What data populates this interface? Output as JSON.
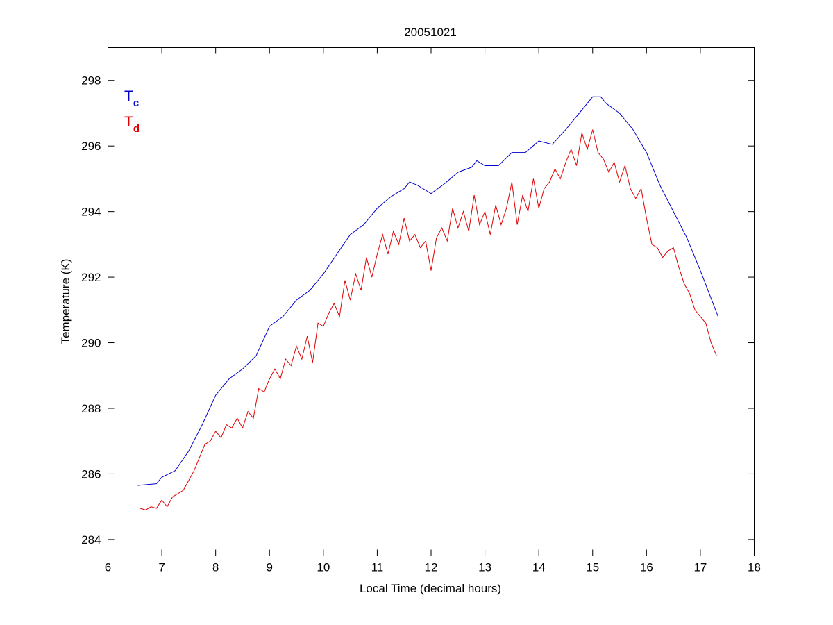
{
  "chart_data": {
    "type": "line",
    "title": "20051021",
    "xlabel": "Local Time (decimal hours)",
    "ylabel": "Temperature (K)",
    "xlim": [
      6,
      18
    ],
    "ylim": [
      283.5,
      299
    ],
    "xticks": [
      6,
      7,
      8,
      9,
      10,
      11,
      12,
      13,
      14,
      15,
      16,
      17,
      18
    ],
    "yticks": [
      284,
      286,
      288,
      290,
      292,
      294,
      296,
      298
    ],
    "grid": false,
    "legend_placement": "top-left",
    "series": [
      {
        "name": "Tc",
        "legend_main": "T",
        "legend_sub": "c",
        "color": "#0000cc",
        "x": [
          6.55,
          6.9,
          7.0,
          7.25,
          7.5,
          7.75,
          8.0,
          8.25,
          8.5,
          8.75,
          9.0,
          9.25,
          9.5,
          9.75,
          10.0,
          10.25,
          10.5,
          10.75,
          11.0,
          11.25,
          11.5,
          11.6,
          11.75,
          12.0,
          12.25,
          12.5,
          12.75,
          12.85,
          13.0,
          13.25,
          13.5,
          13.75,
          14.0,
          14.25,
          14.5,
          14.75,
          15.0,
          15.15,
          15.25,
          15.5,
          15.75,
          16.0,
          16.25,
          16.5,
          16.75,
          17.0,
          17.33
        ],
        "y": [
          285.65,
          285.7,
          285.9,
          286.1,
          286.7,
          287.5,
          288.4,
          288.9,
          289.2,
          289.6,
          290.5,
          290.8,
          291.3,
          291.6,
          292.1,
          292.7,
          293.3,
          293.6,
          294.1,
          294.45,
          294.7,
          294.9,
          294.8,
          294.55,
          294.85,
          295.2,
          295.35,
          295.55,
          295.4,
          295.4,
          295.8,
          295.8,
          296.15,
          296.05,
          296.5,
          297.0,
          297.5,
          297.5,
          297.3,
          297.0,
          296.5,
          295.8,
          294.8,
          294.0,
          293.2,
          292.2,
          290.8
        ]
      },
      {
        "name": "Td",
        "legend_main": "T",
        "legend_sub": "d",
        "color": "#e00000",
        "x": [
          6.6,
          6.7,
          6.8,
          6.9,
          7.0,
          7.1,
          7.2,
          7.3,
          7.4,
          7.5,
          7.6,
          7.7,
          7.8,
          7.9,
          8.0,
          8.1,
          8.2,
          8.3,
          8.4,
          8.5,
          8.6,
          8.7,
          8.8,
          8.9,
          9.0,
          9.1,
          9.2,
          9.3,
          9.4,
          9.5,
          9.6,
          9.7,
          9.8,
          9.9,
          10.0,
          10.1,
          10.2,
          10.3,
          10.4,
          10.5,
          10.6,
          10.7,
          10.8,
          10.9,
          11.0,
          11.1,
          11.2,
          11.3,
          11.4,
          11.5,
          11.6,
          11.7,
          11.8,
          11.9,
          12.0,
          12.1,
          12.2,
          12.3,
          12.4,
          12.5,
          12.6,
          12.7,
          12.8,
          12.9,
          13.0,
          13.1,
          13.2,
          13.3,
          13.4,
          13.5,
          13.6,
          13.7,
          13.8,
          13.9,
          14.0,
          14.1,
          14.2,
          14.3,
          14.4,
          14.5,
          14.6,
          14.7,
          14.8,
          14.9,
          15.0,
          15.1,
          15.2,
          15.3,
          15.4,
          15.5,
          15.6,
          15.7,
          15.8,
          15.9,
          16.0,
          16.1,
          16.2,
          16.3,
          16.4,
          16.5,
          16.6,
          16.7,
          16.8,
          16.9,
          17.0,
          17.1,
          17.2,
          17.3,
          17.33
        ],
        "y": [
          284.95,
          284.9,
          285.0,
          284.95,
          285.2,
          285.0,
          285.3,
          285.4,
          285.5,
          285.8,
          286.1,
          286.5,
          286.9,
          287.0,
          287.3,
          287.1,
          287.5,
          287.4,
          287.7,
          287.4,
          287.9,
          287.7,
          288.6,
          288.5,
          288.9,
          289.2,
          288.9,
          289.5,
          289.3,
          289.9,
          289.5,
          290.2,
          289.4,
          290.6,
          290.5,
          290.9,
          291.2,
          290.8,
          291.9,
          291.3,
          292.1,
          291.6,
          292.6,
          292.0,
          292.7,
          293.3,
          292.7,
          293.4,
          293.0,
          293.8,
          293.1,
          293.3,
          292.9,
          293.1,
          292.2,
          293.2,
          293.5,
          293.1,
          294.1,
          293.5,
          294.0,
          293.4,
          294.5,
          293.6,
          294.0,
          293.3,
          294.2,
          293.6,
          294.1,
          294.9,
          293.6,
          294.5,
          294.0,
          295.0,
          294.1,
          294.7,
          294.9,
          295.3,
          295.0,
          295.5,
          295.9,
          295.4,
          296.4,
          295.9,
          296.5,
          295.8,
          295.6,
          295.2,
          295.5,
          294.9,
          295.4,
          294.7,
          294.4,
          294.7,
          293.8,
          293.0,
          292.9,
          292.6,
          292.8,
          292.9,
          292.3,
          291.8,
          291.5,
          291.0,
          290.8,
          290.6,
          290.0,
          289.6,
          289.6
        ]
      }
    ]
  }
}
